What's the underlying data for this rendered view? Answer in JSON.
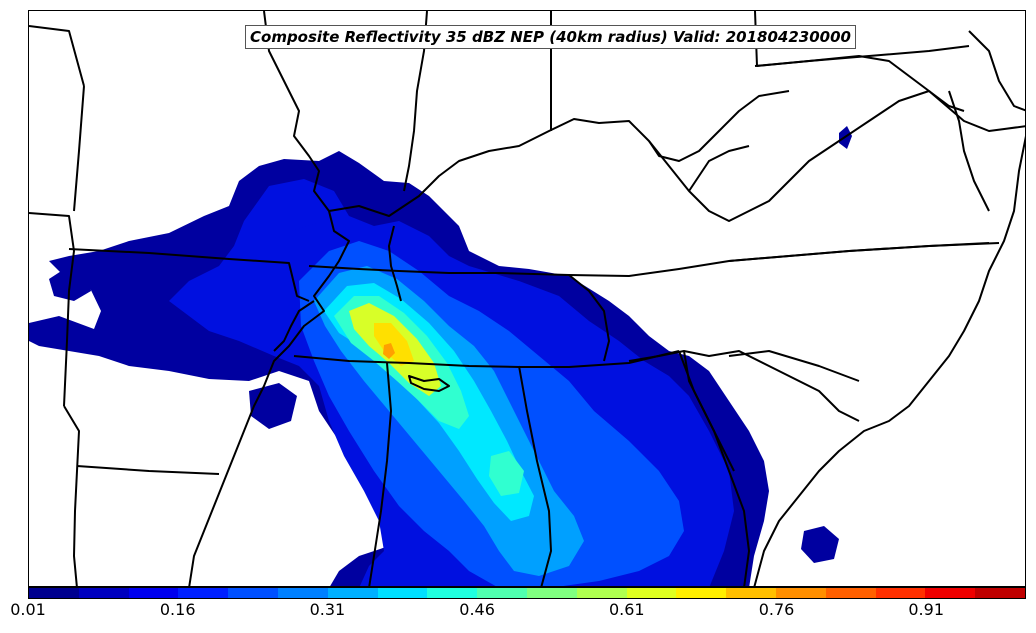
{
  "title": "Composite Reflectivity 35 dBZ NEP (40km radius) Valid: 201804230000",
  "colorbar": {
    "colors": [
      "#00008f",
      "#0000bf",
      "#0000ef",
      "#0020ff",
      "#0050ff",
      "#0080ff",
      "#00b0ff",
      "#00e0ff",
      "#20ffdf",
      "#50ffaf",
      "#80ff80",
      "#afff50",
      "#dfff20",
      "#ffef00",
      "#ffbf00",
      "#ff8f00",
      "#ff6000",
      "#ff3000",
      "#ef0000",
      "#bf0000"
    ],
    "tick_labels": [
      "0.01",
      "0.16",
      "0.31",
      "0.46",
      "0.61",
      "0.76",
      "0.91"
    ]
  },
  "palette": {
    "navy": "#0000a0",
    "blue": "#0010e0",
    "mid_blue": "#0050ff",
    "sky": "#00a0ff",
    "cyan": "#00e8ff",
    "aqua": "#30ffd0",
    "green": "#80ff80",
    "yellow_green": "#d8ff28",
    "yellow": "#ffe000",
    "orange": "#ffa000"
  }
}
